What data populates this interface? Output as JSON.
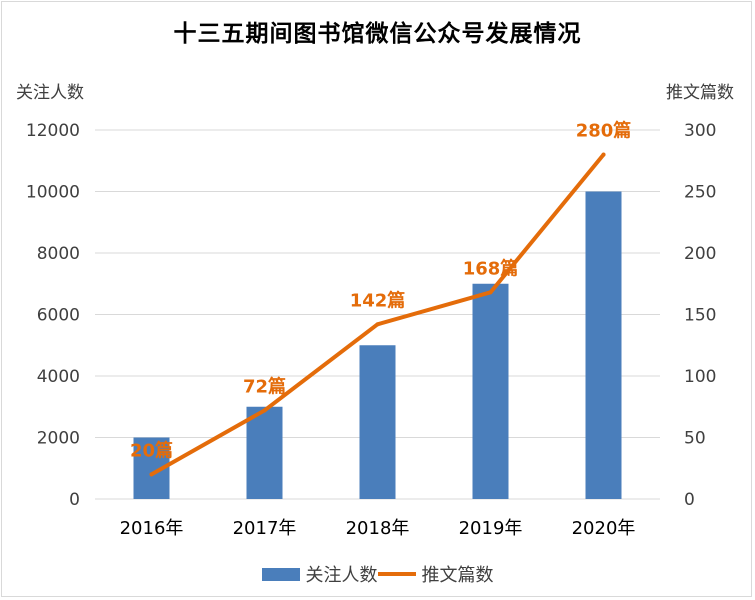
{
  "chart_data": {
    "type": "bar+line",
    "title": "十三五期间图书馆微信公众号发展情况",
    "categories": [
      "2016年",
      "2017年",
      "2018年",
      "2019年",
      "2020年"
    ],
    "series": [
      {
        "name": "关注人数",
        "type": "bar",
        "axis": "left",
        "values": [
          2000,
          3000,
          5000,
          7000,
          10000
        ]
      },
      {
        "name": "推文篇数",
        "type": "line",
        "axis": "right",
        "values": [
          20,
          72,
          142,
          168,
          280
        ],
        "labels": [
          "20篇",
          "72篇",
          "142篇",
          "168篇",
          "280篇"
        ]
      }
    ],
    "y_left": {
      "label": "关注人数",
      "ylim": [
        0,
        12000
      ],
      "ticks": [
        0,
        2000,
        4000,
        6000,
        8000,
        10000,
        12000
      ]
    },
    "y_right": {
      "label": "推文篇数",
      "ylim": [
        0,
        300
      ],
      "ticks": [
        0,
        50,
        100,
        150,
        200,
        250,
        300
      ]
    },
    "grid": true,
    "legend_position": "bottom",
    "colors": {
      "bar": "#4a7ebb",
      "line": "#e46c0a",
      "grid": "#d9d9d9",
      "text": "#404040"
    }
  }
}
